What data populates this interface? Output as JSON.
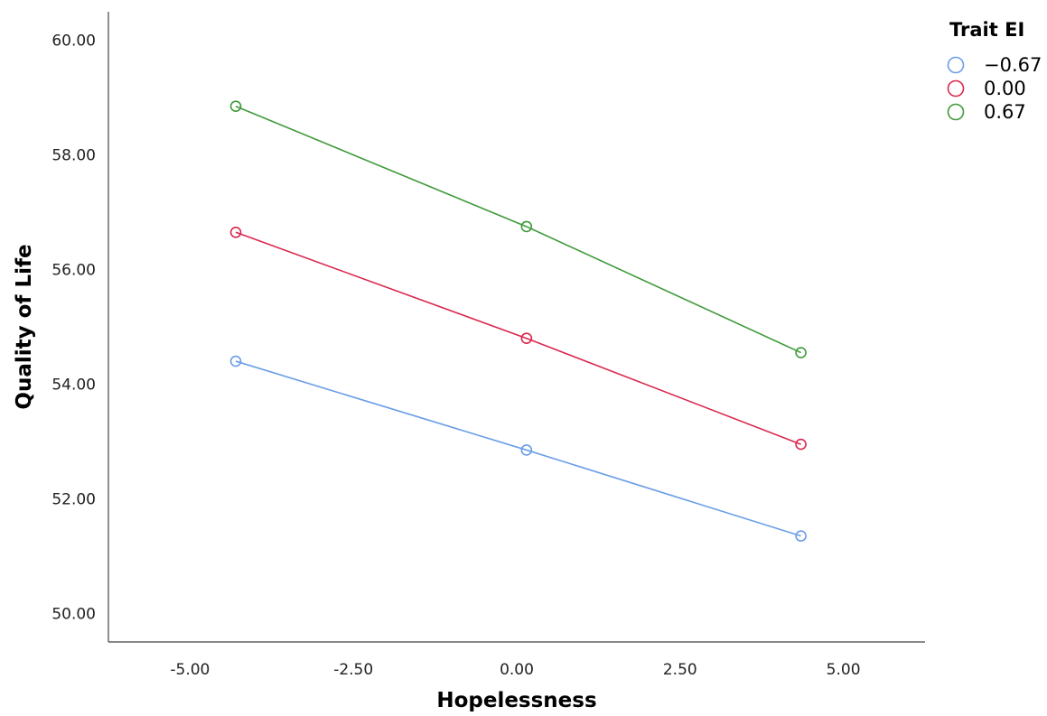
{
  "chart_data": {
    "type": "line",
    "title": "",
    "xlabel": "Hopelessness",
    "ylabel": "Quality of Life",
    "xlim": [
      -6.25,
      6.25
    ],
    "ylim": [
      49.5,
      60.5
    ],
    "x_ticks": [
      -5.0,
      -2.5,
      0.0,
      2.5,
      5.0
    ],
    "x_tick_labels": [
      "-5.00",
      "-2.50",
      "0.00",
      "2.50",
      "5.00"
    ],
    "y_ticks": [
      50,
      52,
      54,
      56,
      58,
      60
    ],
    "y_tick_labels": [
      "50.00",
      "52.00",
      "54.00",
      "56.00",
      "58.00",
      "60.00"
    ],
    "grid": false,
    "legend_title": "Trait EI",
    "legend_position": "top-right",
    "x": [
      -4.3,
      0.15,
      4.35
    ],
    "series": [
      {
        "name": "−0.67",
        "color": "#6a9ee6",
        "values": [
          54.4,
          52.85,
          51.35
        ]
      },
      {
        "name": "0.00",
        "color": "#d9284e",
        "values": [
          56.65,
          54.8,
          52.95
        ]
      },
      {
        "name": "0.67",
        "color": "#3f9a3a",
        "values": [
          58.85,
          56.75,
          54.55
        ]
      }
    ]
  }
}
